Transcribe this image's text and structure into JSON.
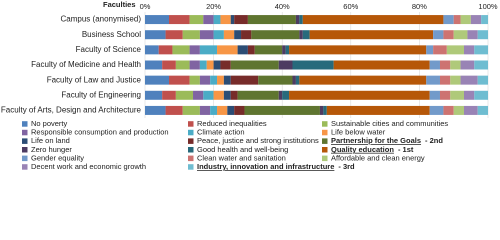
{
  "chart_data": {
    "type": "stacked-bar-horizontal",
    "y_axis_label": "Faculties",
    "categories": [
      "Campus (anonymised)",
      "Business School",
      "Faculty of Science",
      "Faculty of Medicine and Health",
      "Faculty of Law and Justice",
      "Faculty of Engineering",
      "Faculty of Arts, Design and Architecture"
    ],
    "xlim": [
      0,
      100
    ],
    "xticks": [
      {
        "value": 0,
        "label": "0%"
      },
      {
        "value": 20,
        "label": "20%"
      },
      {
        "value": 40,
        "label": "40%"
      },
      {
        "value": 60,
        "label": "60%"
      },
      {
        "value": 80,
        "label": "80%"
      },
      {
        "value": 100,
        "label": "100%"
      }
    ],
    "legend": "bottom",
    "series": [
      {
        "name": "No poverty",
        "color": "#4f81bd",
        "values": [
          7,
          6,
          4,
          5,
          7,
          5,
          6
        ]
      },
      {
        "name": "Reduced inequalities",
        "color": "#c0504d",
        "values": [
          6,
          5,
          4,
          4,
          6,
          4,
          5
        ]
      },
      {
        "name": "Sustainable cities and communities",
        "color": "#9bbb59",
        "values": [
          4,
          5,
          5,
          4,
          3,
          5,
          5
        ]
      },
      {
        "name": "Responsible consumption and production",
        "color": "#8064a2",
        "values": [
          3,
          4,
          3,
          3,
          3,
          3,
          3
        ]
      },
      {
        "name": "Climate action",
        "color": "#4bacc6",
        "values": [
          2,
          3,
          5,
          2,
          2,
          3,
          2
        ]
      },
      {
        "name": "Life below water",
        "color": "#f79646",
        "values": [
          3,
          3,
          6,
          2,
          2,
          3,
          3
        ]
      },
      {
        "name": "Life on land",
        "color": "#2c4d75",
        "values": [
          1,
          2,
          3,
          2,
          2,
          2,
          2
        ]
      },
      {
        "name": "Peace, justice and strong institutions",
        "color": "#772c2a",
        "values": [
          4,
          3,
          2,
          3,
          8,
          2,
          3
        ]
      },
      {
        "name": "Partnership for the Goals",
        "rank": "- 2nd",
        "color": "#5f7530",
        "values": [
          14,
          14,
          8,
          14,
          10,
          12,
          22
        ]
      },
      {
        "name": "Zero hunger",
        "color": "#4d3b62",
        "values": [
          1,
          1,
          1,
          4,
          1,
          1,
          1
        ]
      },
      {
        "name": "Good health and well-being",
        "color": "#276a7c",
        "values": [
          1,
          2,
          1,
          12,
          1,
          2,
          1
        ]
      },
      {
        "name": "Quality education",
        "rank": "- 1st",
        "color": "#b65708",
        "values": [
          41,
          36,
          40,
          28,
          37,
          41,
          30
        ]
      },
      {
        "name": "Gender equality",
        "color": "#729aca",
        "values": [
          3,
          3,
          2,
          3,
          4,
          3,
          4
        ]
      },
      {
        "name": "Clean water and sanitation",
        "color": "#cd7371",
        "values": [
          2,
          3,
          4,
          3,
          3,
          3,
          3
        ]
      },
      {
        "name": "Affordable and clean energy",
        "color": "#afc97a",
        "values": [
          3,
          4,
          5,
          3,
          3,
          4,
          3
        ]
      },
      {
        "name": "Decent work and economic growth",
        "color": "#9983b5",
        "values": [
          3,
          3,
          3,
          4,
          5,
          3,
          4
        ]
      },
      {
        "name": "Industry, innovation and infrastructure",
        "rank": "- 3rd",
        "color": "#6fbdd1",
        "values": [
          2,
          3,
          4,
          4,
          3,
          4,
          3
        ]
      }
    ]
  }
}
